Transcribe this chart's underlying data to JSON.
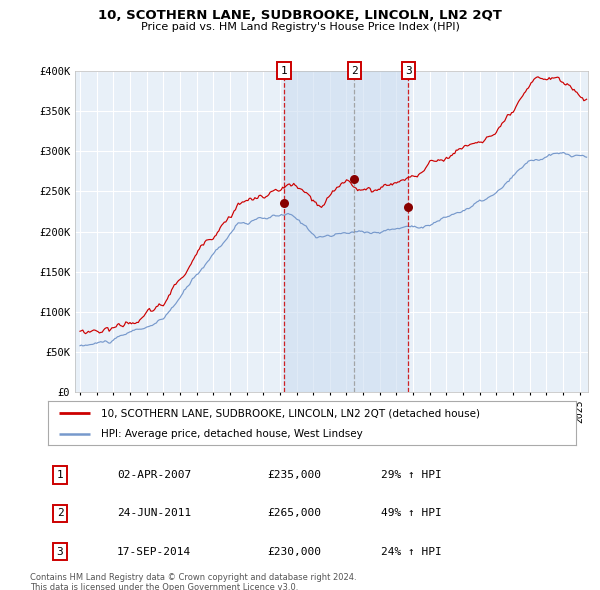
{
  "title": "10, SCOTHERN LANE, SUDBROOKE, LINCOLN, LN2 2QT",
  "subtitle": "Price paid vs. HM Land Registry's House Price Index (HPI)",
  "ylim": [
    0,
    400000
  ],
  "yticks": [
    0,
    50000,
    100000,
    150000,
    200000,
    250000,
    300000,
    350000,
    400000
  ],
  "ytick_labels": [
    "£0",
    "£50K",
    "£100K",
    "£150K",
    "£200K",
    "£250K",
    "£300K",
    "£350K",
    "£400K"
  ],
  "xlim_start": 1994.7,
  "xlim_end": 2025.5,
  "sale_dates": [
    2007.25,
    2011.47,
    2014.72
  ],
  "sale_prices": [
    235000,
    265000,
    230000
  ],
  "sale_labels": [
    "1",
    "2",
    "3"
  ],
  "sale_table": [
    [
      "1",
      "02-APR-2007",
      "£235,000",
      "29% ↑ HPI"
    ],
    [
      "2",
      "24-JUN-2011",
      "£265,000",
      "49% ↑ HPI"
    ],
    [
      "3",
      "17-SEP-2014",
      "£230,000",
      "24% ↑ HPI"
    ]
  ],
  "legend_line1": "10, SCOTHERN LANE, SUDBROOKE, LINCOLN, LN2 2QT (detached house)",
  "legend_line2": "HPI: Average price, detached house, West Lindsey",
  "footer1": "Contains HM Land Registry data © Crown copyright and database right 2024.",
  "footer2": "This data is licensed under the Open Government Licence v3.0.",
  "line_color_property": "#cc0000",
  "line_color_hpi": "#7799cc",
  "plot_bg": "#e8f0f8",
  "grid_color": "#ffffff",
  "sale_marker_color": "#880000",
  "shade_color": "#ccddf0"
}
